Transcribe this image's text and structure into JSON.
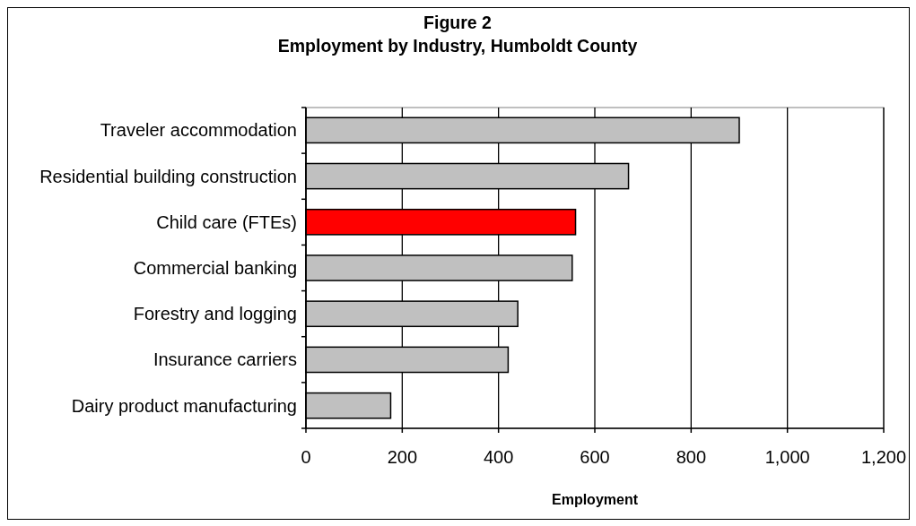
{
  "chart_data": {
    "type": "bar",
    "orientation": "horizontal",
    "title": "Figure 2",
    "subtitle": "Employment by Industry, Humboldt County",
    "xlabel": "Employment",
    "categories": [
      "Traveler accommodation",
      "Residential building construction",
      "Child care (FTEs)",
      "Commercial banking",
      "Forestry and logging",
      "Insurance carriers",
      "Dairy product manufacturing"
    ],
    "values": [
      900,
      670,
      560,
      553,
      440,
      420,
      176
    ],
    "colors": [
      "#c0c0c0",
      "#c0c0c0",
      "#ff0000",
      "#c0c0c0",
      "#c0c0c0",
      "#c0c0c0",
      "#c0c0c0"
    ],
    "xlim": [
      0,
      1200
    ],
    "xticks": [
      0,
      200,
      400,
      600,
      800,
      {
        "value": 1000,
        "label": "1,000"
      },
      {
        "value": 1200,
        "label": "1,200"
      }
    ],
    "grid": "x"
  }
}
